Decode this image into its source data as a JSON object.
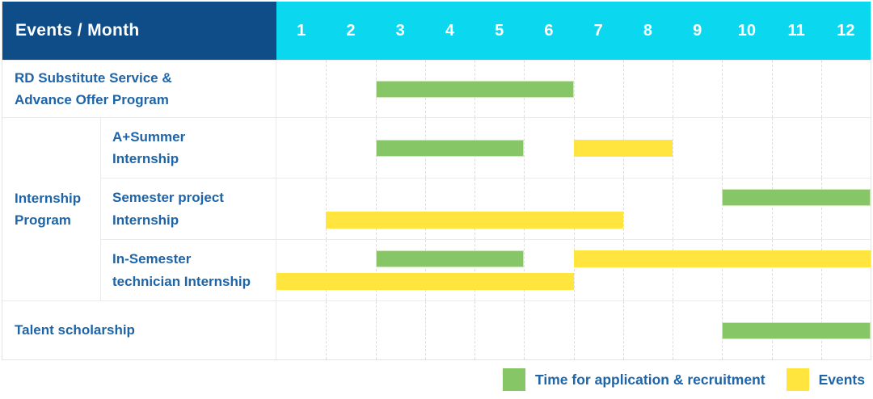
{
  "labels": {
    "internship_program": "Internship\nProgram"
  },
  "colors": {
    "header_bg": "#0e4d88",
    "months_bg": "#0bd8ee",
    "label_text": "#1d64a8",
    "recruitment_green": "#86c666",
    "events_yellow": "#ffe53e"
  },
  "chart_data": {
    "type": "gantt",
    "title": "Events / Month",
    "xlabel": "Month",
    "months": [
      "1",
      "2",
      "3",
      "4",
      "5",
      "6",
      "7",
      "8",
      "9",
      "10",
      "11",
      "12"
    ],
    "x_range": [
      1,
      13
    ],
    "legend_position": "bottom-right",
    "series": [
      {
        "key": "recruitment",
        "name": "Time for application & recruitment",
        "color": "#86c666"
      },
      {
        "key": "events",
        "name": "Events",
        "color": "#ffe53e"
      }
    ],
    "rows": [
      {
        "key": "rd_substitute",
        "group": null,
        "label": "RD Substitute Service &\nAdvance Offer Program",
        "lanes": 1,
        "bars": [
          {
            "series": "recruitment",
            "lane": 0,
            "from": 3,
            "to": 7
          }
        ]
      },
      {
        "key": "a_summer",
        "group": "Internship Program",
        "label": "A+Summer\nInternship",
        "lanes": 1,
        "bars": [
          {
            "series": "recruitment",
            "lane": 0,
            "from": 3,
            "to": 6
          },
          {
            "series": "events",
            "lane": 0,
            "from": 7,
            "to": 9
          }
        ]
      },
      {
        "key": "semester_project",
        "group": "Internship Program",
        "label": "Semester project\nInternship",
        "lanes": 2,
        "bars": [
          {
            "series": "recruitment",
            "lane": 0,
            "from": 10,
            "to": 13
          },
          {
            "series": "events",
            "lane": 1,
            "from": 2,
            "to": 8
          }
        ]
      },
      {
        "key": "in_semester",
        "group": "Internship Program",
        "label": "In-Semester\ntechnician Internship",
        "lanes": 2,
        "bars": [
          {
            "series": "recruitment",
            "lane": 0,
            "from": 3,
            "to": 6
          },
          {
            "series": "events",
            "lane": 0,
            "from": 7,
            "to": 13
          },
          {
            "series": "events",
            "lane": 1,
            "from": 1,
            "to": 7
          }
        ]
      },
      {
        "key": "talent",
        "group": null,
        "label": "Talent scholarship",
        "lanes": 1,
        "bars": [
          {
            "series": "recruitment",
            "lane": 0,
            "from": 10,
            "to": 13
          }
        ]
      }
    ]
  }
}
